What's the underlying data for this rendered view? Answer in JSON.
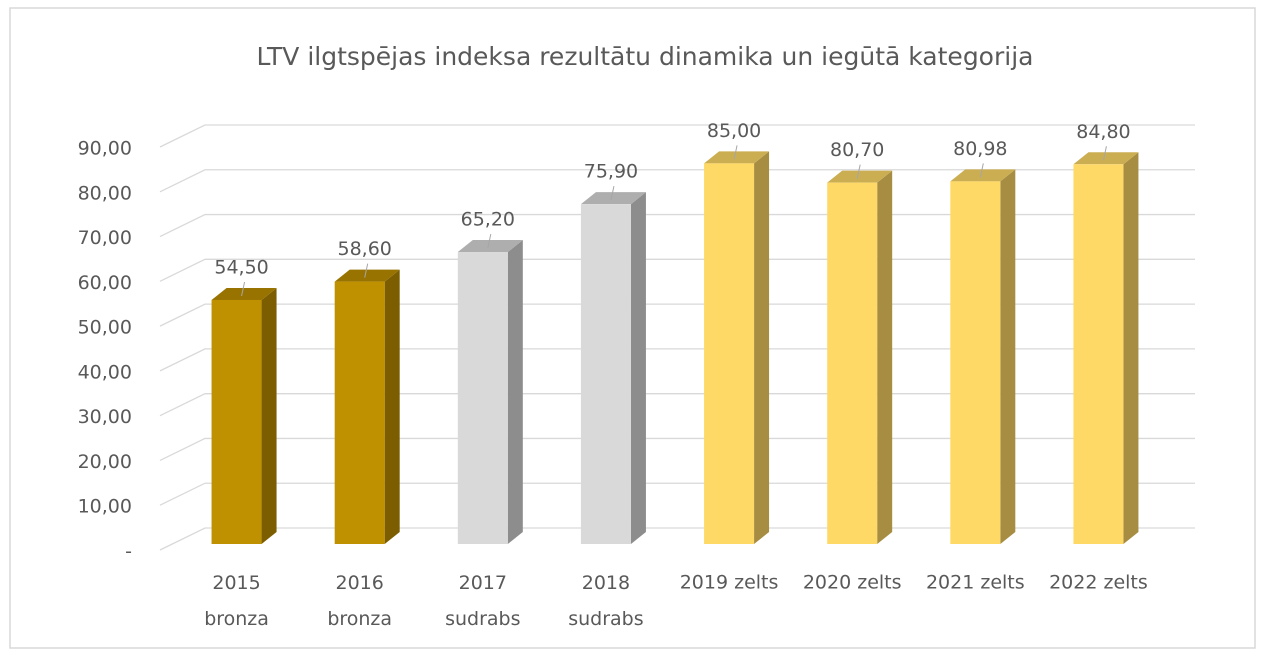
{
  "chart_data": {
    "type": "bar3d",
    "title": "LTV ilgtspējas indeksa rezultātu dinamika un iegūtā kategorija",
    "categories": [
      "2015 bronza",
      "2016 bronza",
      "2017 sudrabs",
      "2018 sudrabs",
      "2019 zelts",
      "2020 zelts",
      "2021 zelts",
      "2022 zelts"
    ],
    "values": [
      54.5,
      58.6,
      65.2,
      75.9,
      85,
      80.7,
      80.98,
      84.8
    ],
    "value_labels": [
      "54,50",
      "58,60",
      "65,20",
      "75,90",
      "85,00",
      "80,70",
      "80,98",
      "84,80"
    ],
    "colors": [
      "#bf9000",
      "#bf9000",
      "#d9d9d9",
      "#d9d9d9",
      "#ffd966",
      "#ffd966",
      "#ffd966",
      "#ffd966"
    ],
    "ylim": [
      0,
      90
    ],
    "yticks": [
      {
        "value": 0,
        "label": "-"
      },
      {
        "value": 10,
        "label": "10,00"
      },
      {
        "value": 20,
        "label": "20,00"
      },
      {
        "value": 30,
        "label": "30,00"
      },
      {
        "value": 40,
        "label": "40,00"
      },
      {
        "value": 50,
        "label": "50,00"
      },
      {
        "value": 60,
        "label": "60,00"
      },
      {
        "value": 70,
        "label": "70,00"
      },
      {
        "value": 80,
        "label": "80,00"
      },
      {
        "value": 90,
        "label": "90,00"
      }
    ],
    "grid": true
  }
}
